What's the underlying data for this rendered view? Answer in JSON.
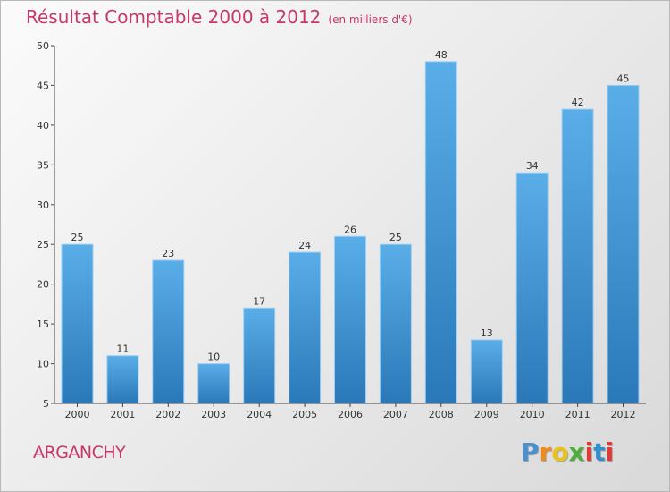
{
  "header": {
    "title": "Résultat Comptable 2000 à 2012",
    "subtitle": "(en milliers d'€)"
  },
  "footer": {
    "city": "ARGANCHY",
    "brand": "Proxiti",
    "brand_colors": [
      "#4a8fd0",
      "#f08a1c",
      "#e8c21b",
      "#4fae3a",
      "#e23a31",
      "#2f8fcf",
      "#e23a31"
    ]
  },
  "colors": {
    "accent": "#c9376a",
    "bar_top": "#5aaee8",
    "bar_bottom": "#2a78b8",
    "axis": "#444444"
  },
  "chart_data": {
    "type": "bar",
    "title": "Résultat Comptable 2000 à 2012",
    "xlabel": "",
    "ylabel": "",
    "categories": [
      "2000",
      "2001",
      "2002",
      "2003",
      "2004",
      "2005",
      "2006",
      "2007",
      "2008",
      "2009",
      "2010",
      "2011",
      "2012"
    ],
    "values": [
      25,
      11,
      23,
      10,
      17,
      24,
      26,
      25,
      48,
      13,
      34,
      42,
      45
    ],
    "ylim": [
      5,
      50
    ],
    "yticks": [
      5,
      10,
      15,
      20,
      25,
      30,
      35,
      40,
      45,
      50
    ],
    "grid": false,
    "data_labels": true
  }
}
